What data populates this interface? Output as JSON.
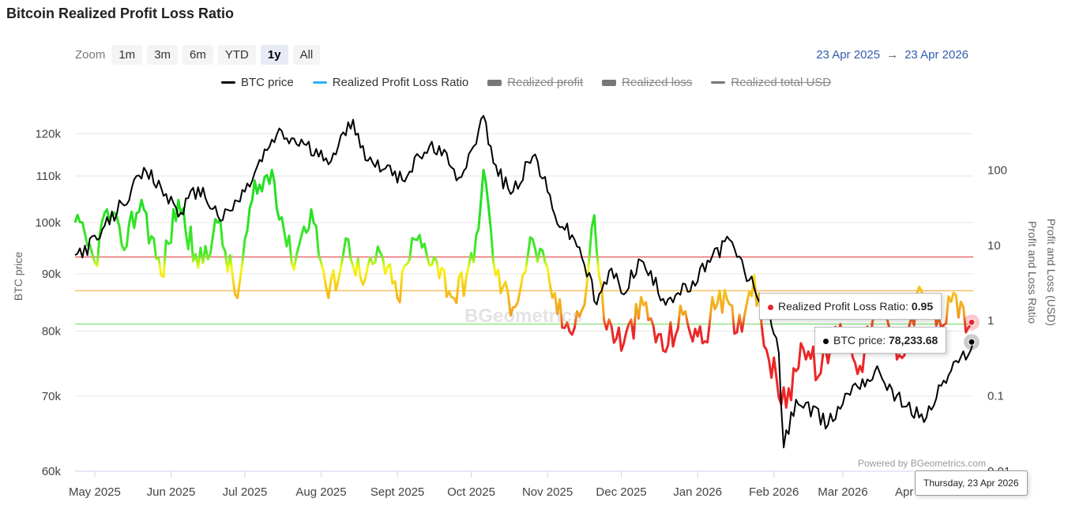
{
  "title": "Bitcoin Realized Profit Loss Ratio",
  "zoom": {
    "label": "Zoom",
    "buttons": [
      "1m",
      "3m",
      "6m",
      "YTD",
      "1y",
      "All"
    ],
    "active": "1y"
  },
  "range": {
    "from": "23 Apr 2025",
    "arrow": "→",
    "to": "23 Apr 2026"
  },
  "legend": [
    {
      "name": "BTC price",
      "color": "#000000",
      "hidden": false
    },
    {
      "name": "Realized Profit Loss Ratio",
      "color": "#2caffe",
      "hidden": false
    },
    {
      "name": "Realized profit",
      "color": "#777777",
      "hidden": true
    },
    {
      "name": "Realized loss",
      "color": "#777777",
      "hidden": true
    },
    {
      "name": "Realized total USD",
      "color": "#777777",
      "hidden": true
    }
  ],
  "tooltip_ratio": {
    "label": "Realized Profit Loss Ratio: ",
    "value": "0.95",
    "color": "#e6262e"
  },
  "tooltip_price": {
    "label": "BTC price: ",
    "value": "78,233.68",
    "color": "#000000"
  },
  "x_tooltip": "Thursday, 23 Apr 2026",
  "credits": "Powered by BGeometrics.com",
  "watermark": "BGeometrics",
  "chart_data": {
    "type": "line",
    "title": "Bitcoin Realized Profit Loss Ratio",
    "x_range": [
      "2025-04-23",
      "2026-04-23"
    ],
    "xticks": [
      "May 2025",
      "Jun 2025",
      "Jul 2025",
      "Aug 2025",
      "Sept 2025",
      "Oct 2025",
      "Nov 2025",
      "Dec 2025",
      "Jan 2026",
      "Feb 2026",
      "Mar 2026",
      "Apr 2026"
    ],
    "xtick_dates": [
      "2025-05-01",
      "2025-06-01",
      "2025-07-01",
      "2025-08-01",
      "2025-09-01",
      "2025-10-01",
      "2025-11-01",
      "2025-12-01",
      "2026-01-01",
      "2026-02-01",
      "2026-03-01",
      "2026-04-01"
    ],
    "y_left": {
      "label": "BTC price",
      "scale": "log",
      "ticks": [
        60000,
        70000,
        80000,
        90000,
        100000,
        110000,
        120000
      ],
      "tick_labels": [
        "60k",
        "70k",
        "80k",
        "90k",
        "100k",
        "110k",
        "120k"
      ],
      "range": [
        60000,
        130000
      ]
    },
    "y_right": {
      "label": "Profit and Loss Ratio",
      "label2": "Profit and Loss (USD)",
      "scale": "log",
      "ticks": [
        0.01,
        0.1,
        1,
        10,
        100
      ],
      "tick_labels": [
        "0.01",
        "0.1",
        "1",
        "10",
        "100"
      ],
      "range": [
        0.01,
        1000
      ]
    },
    "thresholds": [
      {
        "value": 7,
        "color": "#e03030"
      },
      {
        "value": 2.5,
        "color": "#f0a020"
      },
      {
        "value": 0.9,
        "color": "#66dd55"
      }
    ],
    "btc_price_anchors": [
      [
        "2025-04-23",
        93500
      ],
      [
        "2025-05-02",
        96500
      ],
      [
        "2025-05-12",
        104000
      ],
      [
        "2025-05-22",
        111000
      ],
      [
        "2025-06-05",
        102000
      ],
      [
        "2025-06-12",
        107500
      ],
      [
        "2025-06-22",
        100500
      ],
      [
        "2025-07-01",
        106500
      ],
      [
        "2025-07-10",
        116000
      ],
      [
        "2025-07-14",
        119800
      ],
      [
        "2025-07-25",
        117500
      ],
      [
        "2025-08-02",
        113500
      ],
      [
        "2025-08-08",
        117000
      ],
      [
        "2025-08-14",
        123500
      ],
      [
        "2025-08-20",
        113500
      ],
      [
        "2025-08-28",
        112500
      ],
      [
        "2025-09-01",
        108500
      ],
      [
        "2025-09-12",
        115500
      ],
      [
        "2025-09-18",
        117000
      ],
      [
        "2025-09-25",
        109000
      ],
      [
        "2025-10-01",
        116000
      ],
      [
        "2025-10-06",
        124500
      ],
      [
        "2025-10-10",
        113000
      ],
      [
        "2025-10-17",
        106000
      ],
      [
        "2025-10-27",
        115000
      ],
      [
        "2025-11-04",
        101500
      ],
      [
        "2025-11-14",
        95000
      ],
      [
        "2025-11-21",
        84500
      ],
      [
        "2025-11-27",
        91000
      ],
      [
        "2025-12-01",
        86500
      ],
      [
        "2025-12-09",
        92500
      ],
      [
        "2025-12-18",
        85500
      ],
      [
        "2025-12-31",
        87800
      ],
      [
        "2026-01-05",
        92500
      ],
      [
        "2026-01-14",
        96500
      ],
      [
        "2026-01-20",
        90500
      ],
      [
        "2026-01-29",
        84000
      ],
      [
        "2026-02-03",
        76500
      ],
      [
        "2026-02-05",
        63000
      ],
      [
        "2026-02-10",
        69500
      ],
      [
        "2026-02-23",
        66000
      ],
      [
        "2026-03-05",
        71500
      ],
      [
        "2026-03-16",
        73500
      ],
      [
        "2026-03-26",
        68500
      ],
      [
        "2026-04-04",
        67000
      ],
      [
        "2026-04-10",
        71500
      ],
      [
        "2026-04-17",
        75000
      ],
      [
        "2026-04-23",
        78233.68
      ]
    ],
    "ratio_anchors": [
      [
        "2025-04-23",
        20
      ],
      [
        "2025-05-01",
        6
      ],
      [
        "2025-05-06",
        30
      ],
      [
        "2025-05-12",
        10
      ],
      [
        "2025-05-20",
        40
      ],
      [
        "2025-05-28",
        4
      ],
      [
        "2025-06-04",
        40
      ],
      [
        "2025-06-12",
        5
      ],
      [
        "2025-06-20",
        20
      ],
      [
        "2025-06-28",
        2
      ],
      [
        "2025-07-04",
        40
      ],
      [
        "2025-07-12",
        100
      ],
      [
        "2025-07-20",
        6
      ],
      [
        "2025-07-28",
        30
      ],
      [
        "2025-08-04",
        2
      ],
      [
        "2025-08-12",
        12
      ],
      [
        "2025-08-18",
        3
      ],
      [
        "2025-08-25",
        8
      ],
      [
        "2025-09-01",
        2
      ],
      [
        "2025-09-08",
        12
      ],
      [
        "2025-09-16",
        7
      ],
      [
        "2025-09-24",
        2
      ],
      [
        "2025-10-02",
        6
      ],
      [
        "2025-10-06",
        100
      ],
      [
        "2025-10-11",
        4
      ],
      [
        "2025-10-18",
        1.5
      ],
      [
        "2025-10-26",
        12
      ],
      [
        "2025-11-02",
        3
      ],
      [
        "2025-11-08",
        0.8
      ],
      [
        "2025-11-16",
        1.6
      ],
      [
        "2025-11-20",
        25
      ],
      [
        "2025-11-24",
        1
      ],
      [
        "2025-12-02",
        0.5
      ],
      [
        "2025-12-10",
        1.6
      ],
      [
        "2025-12-18",
        0.4
      ],
      [
        "2025-12-26",
        1.2
      ],
      [
        "2026-01-03",
        0.5
      ],
      [
        "2026-01-10",
        2.5
      ],
      [
        "2026-01-17",
        0.7
      ],
      [
        "2026-01-24",
        4
      ],
      [
        "2026-01-30",
        0.3
      ],
      [
        "2026-02-06",
        0.07
      ],
      [
        "2026-02-12",
        0.5
      ],
      [
        "2026-02-20",
        0.2
      ],
      [
        "2026-02-28",
        0.9
      ],
      [
        "2026-03-08",
        0.25
      ],
      [
        "2026-03-16",
        1.8
      ],
      [
        "2026-03-24",
        0.35
      ],
      [
        "2026-04-02",
        2.5
      ],
      [
        "2026-04-10",
        0.8
      ],
      [
        "2026-04-16",
        2.2
      ],
      [
        "2026-04-20",
        0.7
      ],
      [
        "2026-04-23",
        0.95
      ]
    ]
  }
}
